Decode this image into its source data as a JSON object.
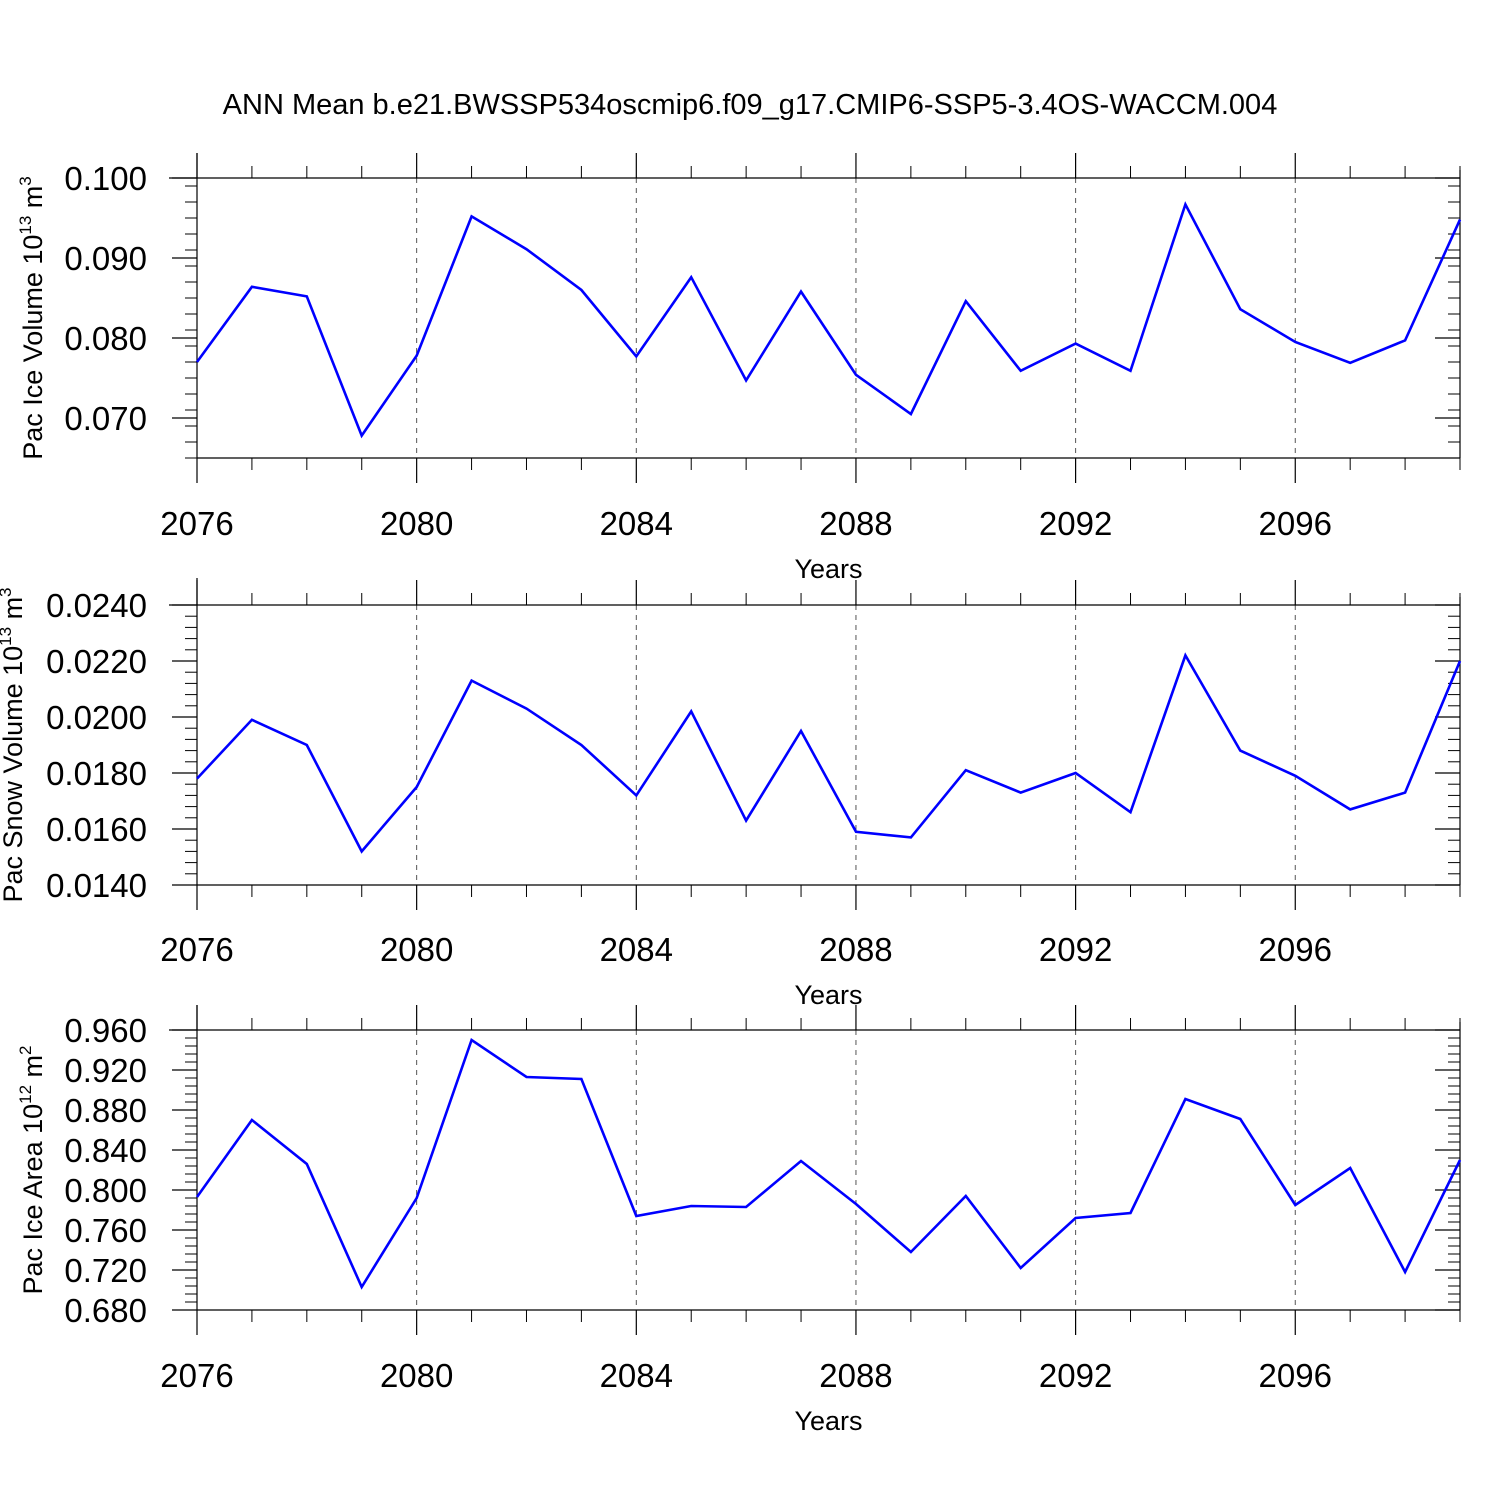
{
  "title": "ANN Mean b.e21.BWSSP534oscmip6.f09_g17.CMIP6-SSP5-3.4OS-WACCM.004",
  "colors": {
    "line": "#0000ff",
    "axis": "#000000",
    "grid": "#555555"
  },
  "chart_data": [
    {
      "type": "line",
      "ylabel": {
        "base": "Pac Ice Volume 10",
        "exp1": "13",
        "unit": " m",
        "exp2": "3"
      },
      "xlabel": "Years",
      "xlim": [
        2076,
        2099
      ],
      "ylim": [
        0.065,
        0.1
      ],
      "xticks": [
        2076,
        2080,
        2084,
        2088,
        2092,
        2096
      ],
      "yticks": [
        0.07,
        0.08,
        0.09,
        0.1
      ],
      "ytick_labels": [
        "0.070",
        "0.080",
        "0.090",
        "0.100"
      ],
      "grid": "vertical dashed at major x ticks",
      "x": [
        2076,
        2077,
        2078,
        2079,
        2080,
        2081,
        2082,
        2083,
        2084,
        2085,
        2086,
        2087,
        2088,
        2089,
        2090,
        2091,
        2092,
        2093,
        2094,
        2095,
        2096,
        2097,
        2098,
        2099
      ],
      "series": [
        {
          "values": [
            0.077,
            0.0864,
            0.0852,
            0.0678,
            0.0778,
            0.0952,
            0.0911,
            0.086,
            0.0777,
            0.0876,
            0.0747,
            0.0858,
            0.0754,
            0.0705,
            0.0846,
            0.0759,
            0.0793,
            0.0759,
            0.0967,
            0.0836,
            0.0795,
            0.0769,
            0.0797,
            0.0948
          ]
        }
      ]
    },
    {
      "type": "line",
      "ylabel": {
        "base": "Pac Snow Volume 10",
        "exp1": "13",
        "unit": " m",
        "exp2": "3"
      },
      "xlabel": "Years",
      "xlim": [
        2076,
        2099
      ],
      "ylim": [
        0.014,
        0.024
      ],
      "xticks": [
        2076,
        2080,
        2084,
        2088,
        2092,
        2096
      ],
      "yticks": [
        0.014,
        0.016,
        0.018,
        0.02,
        0.022,
        0.024
      ],
      "ytick_labels": [
        "0.0140",
        "0.0160",
        "0.0180",
        "0.0200",
        "0.0220",
        "0.0240"
      ],
      "grid": "vertical dashed at major x ticks",
      "x": [
        2076,
        2077,
        2078,
        2079,
        2080,
        2081,
        2082,
        2083,
        2084,
        2085,
        2086,
        2087,
        2088,
        2089,
        2090,
        2091,
        2092,
        2093,
        2094,
        2095,
        2096,
        2097,
        2098,
        2099
      ],
      "series": [
        {
          "values": [
            0.0178,
            0.0199,
            0.019,
            0.0152,
            0.0175,
            0.0213,
            0.0203,
            0.019,
            0.0172,
            0.0202,
            0.0163,
            0.0195,
            0.0159,
            0.0157,
            0.0181,
            0.0173,
            0.018,
            0.0166,
            0.0222,
            0.0188,
            0.0179,
            0.0167,
            0.0173,
            0.022
          ]
        }
      ]
    },
    {
      "type": "line",
      "ylabel": {
        "base": "Pac Ice Area 10",
        "exp1": "12",
        "unit": " m",
        "exp2": "2"
      },
      "xlabel": "Years",
      "xlim": [
        2076,
        2099
      ],
      "ylim": [
        0.68,
        0.96
      ],
      "xticks": [
        2076,
        2080,
        2084,
        2088,
        2092,
        2096
      ],
      "yticks": [
        0.68,
        0.72,
        0.76,
        0.8,
        0.84,
        0.88,
        0.92,
        0.96
      ],
      "ytick_labels": [
        "0.680",
        "0.720",
        "0.760",
        "0.800",
        "0.840",
        "0.880",
        "0.920",
        "0.960"
      ],
      "grid": "vertical dashed at major x ticks",
      "x": [
        2076,
        2077,
        2078,
        2079,
        2080,
        2081,
        2082,
        2083,
        2084,
        2085,
        2086,
        2087,
        2088,
        2089,
        2090,
        2091,
        2092,
        2093,
        2094,
        2095,
        2096,
        2097,
        2098,
        2099
      ],
      "series": [
        {
          "values": [
            0.793,
            0.87,
            0.826,
            0.703,
            0.792,
            0.95,
            0.913,
            0.911,
            0.774,
            0.784,
            0.783,
            0.829,
            0.786,
            0.738,
            0.794,
            0.722,
            0.772,
            0.777,
            0.891,
            0.871,
            0.785,
            0.822,
            0.718,
            0.83
          ]
        }
      ]
    }
  ]
}
